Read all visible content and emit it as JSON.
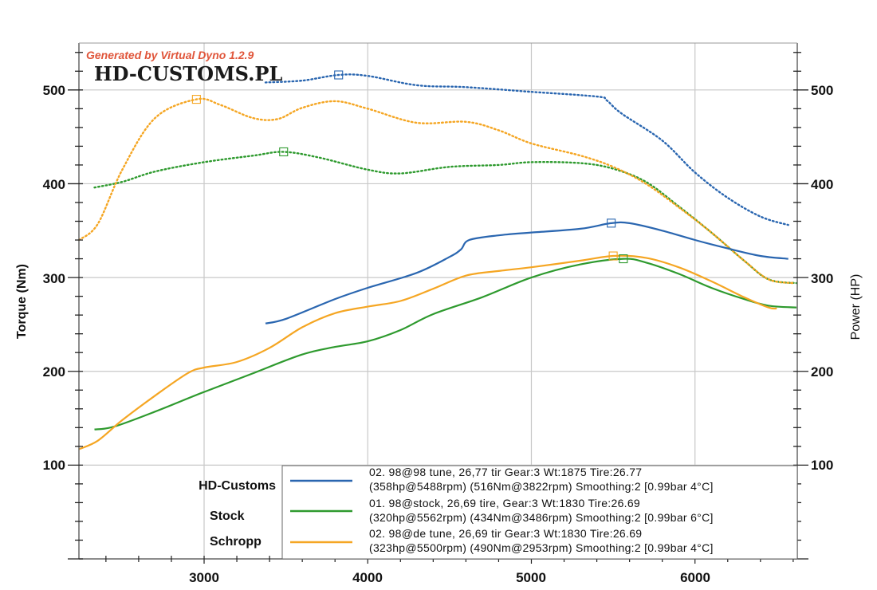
{
  "watermark": "Generated by Virtual Dyno 1.2.9",
  "brand": "HD-CUSTOMS.PL",
  "chart_data": {
    "type": "line",
    "title": "",
    "xlabel": "",
    "ylabel": "Torque (Nm)",
    "y2label": "Power (HP)",
    "xlim": [
      2235,
      6625
    ],
    "ylim": [
      0,
      550
    ],
    "y2lim": [
      0,
      550
    ],
    "x_ticks": [
      3000,
      4000,
      5000,
      6000
    ],
    "x_tick_labels": [
      "3000",
      "4000",
      "5000",
      "6000"
    ],
    "y_ticks": [
      100,
      200,
      300,
      400,
      500
    ],
    "y_tick_labels": [
      "100",
      "200",
      "300",
      "400",
      "500"
    ],
    "y2_ticks": [
      100,
      200,
      300,
      400,
      500
    ],
    "y2_tick_labels": [
      "100",
      "200",
      "300",
      "400",
      "500"
    ],
    "grid": true,
    "legend_placement": "bottom-center",
    "series": [
      {
        "name": "HD-Customs",
        "color": "#2a66b0",
        "run": "02. 98@98 tune, 26,77 tir Gear:3 Wt:1875 Tire:26.77",
        "summary": "(358hp@5488rpm) (516Nm@3822rpm) Smoothing:2 [0.99bar 4°C]",
        "power": {
          "x": [
            3375,
            3500,
            3800,
            4000,
            4300,
            4500,
            4570,
            4620,
            4800,
            5000,
            5300,
            5488,
            5600,
            5800,
            6000,
            6200,
            6400,
            6570
          ],
          "y": [
            251,
            256,
            277,
            289,
            305,
            322,
            330,
            340,
            345,
            348,
            352,
            358,
            358,
            350,
            340,
            331,
            323,
            320
          ],
          "peak": {
            "x": 5488,
            "y": 358
          }
        },
        "torque": {
          "x": [
            3375,
            3600,
            3822,
            4000,
            4300,
            4600,
            5000,
            5400,
            5460,
            5550,
            5800,
            6000,
            6200,
            6400,
            6570
          ],
          "y": [
            508,
            510,
            516,
            515,
            505,
            503,
            498,
            493,
            489,
            475,
            446,
            412,
            385,
            365,
            356
          ],
          "peak": {
            "x": 3822,
            "y": 516
          }
        }
      },
      {
        "name": "Stock",
        "color": "#2e9a2e",
        "run": "01. 98@stock, 26,69 tire, Gear:3 Wt:1830 Tire:26.69",
        "summary": "(320hp@5562rpm) (434Nm@3486rpm) Smoothing:2 [0.99bar 6°C]",
        "power": {
          "x": [
            2330,
            2450,
            2700,
            3000,
            3300,
            3600,
            3800,
            4000,
            4200,
            4400,
            4700,
            5000,
            5300,
            5562,
            5700,
            5900,
            6100,
            6300,
            6450,
            6620
          ],
          "y": [
            138,
            141,
            157,
            178,
            198,
            218,
            226,
            232,
            244,
            261,
            279,
            300,
            314,
            320,
            316,
            304,
            289,
            277,
            270,
            268
          ],
          "peak": {
            "x": 5562,
            "y": 320
          }
        },
        "torque": {
          "x": [
            2330,
            2500,
            2700,
            3000,
            3300,
            3486,
            3700,
            4000,
            4200,
            4500,
            4800,
            5000,
            5300,
            5500,
            5700,
            5900,
            6100,
            6300,
            6450,
            6620
          ],
          "y": [
            396,
            402,
            413,
            423,
            430,
            434,
            428,
            415,
            411,
            418,
            420,
            423,
            422,
            416,
            402,
            376,
            348,
            318,
            298,
            294
          ],
          "peak": {
            "x": 3486,
            "y": 434
          }
        }
      },
      {
        "name": "Schropp",
        "color": "#f5a623",
        "run": "02. 98@de tune, 26,69 tir Gear:3 Wt:1830 Tire:26.69",
        "summary": "(323hp@5500rpm) (490Nm@2953rpm) Smoothing:2 [0.99bar 4°C]",
        "power": {
          "x": [
            2235,
            2350,
            2500,
            2700,
            2900,
            3000,
            3200,
            3400,
            3600,
            3800,
            4000,
            4200,
            4400,
            4600,
            4800,
            5000,
            5300,
            5500,
            5700,
            5900,
            6100,
            6300,
            6450,
            6500
          ],
          "y": [
            117,
            126,
            148,
            174,
            198,
            204,
            210,
            225,
            247,
            262,
            269,
            275,
            288,
            302,
            307,
            311,
            318,
            323,
            321,
            311,
            296,
            279,
            268,
            267
          ],
          "peak": {
            "x": 5500,
            "y": 323
          }
        },
        "torque": {
          "x": [
            2235,
            2350,
            2500,
            2700,
            2953,
            3100,
            3300,
            3450,
            3600,
            3800,
            4000,
            4300,
            4600,
            4800,
            5000,
            5300,
            5500,
            5700,
            5900,
            6100,
            6300,
            6450,
            6600
          ],
          "y": [
            340,
            357,
            415,
            470,
            490,
            484,
            470,
            469,
            481,
            488,
            480,
            465,
            466,
            457,
            443,
            430,
            418,
            400,
            375,
            348,
            318,
            298,
            294
          ],
          "peak": {
            "x": 2953,
            "y": 490
          }
        }
      }
    ]
  }
}
